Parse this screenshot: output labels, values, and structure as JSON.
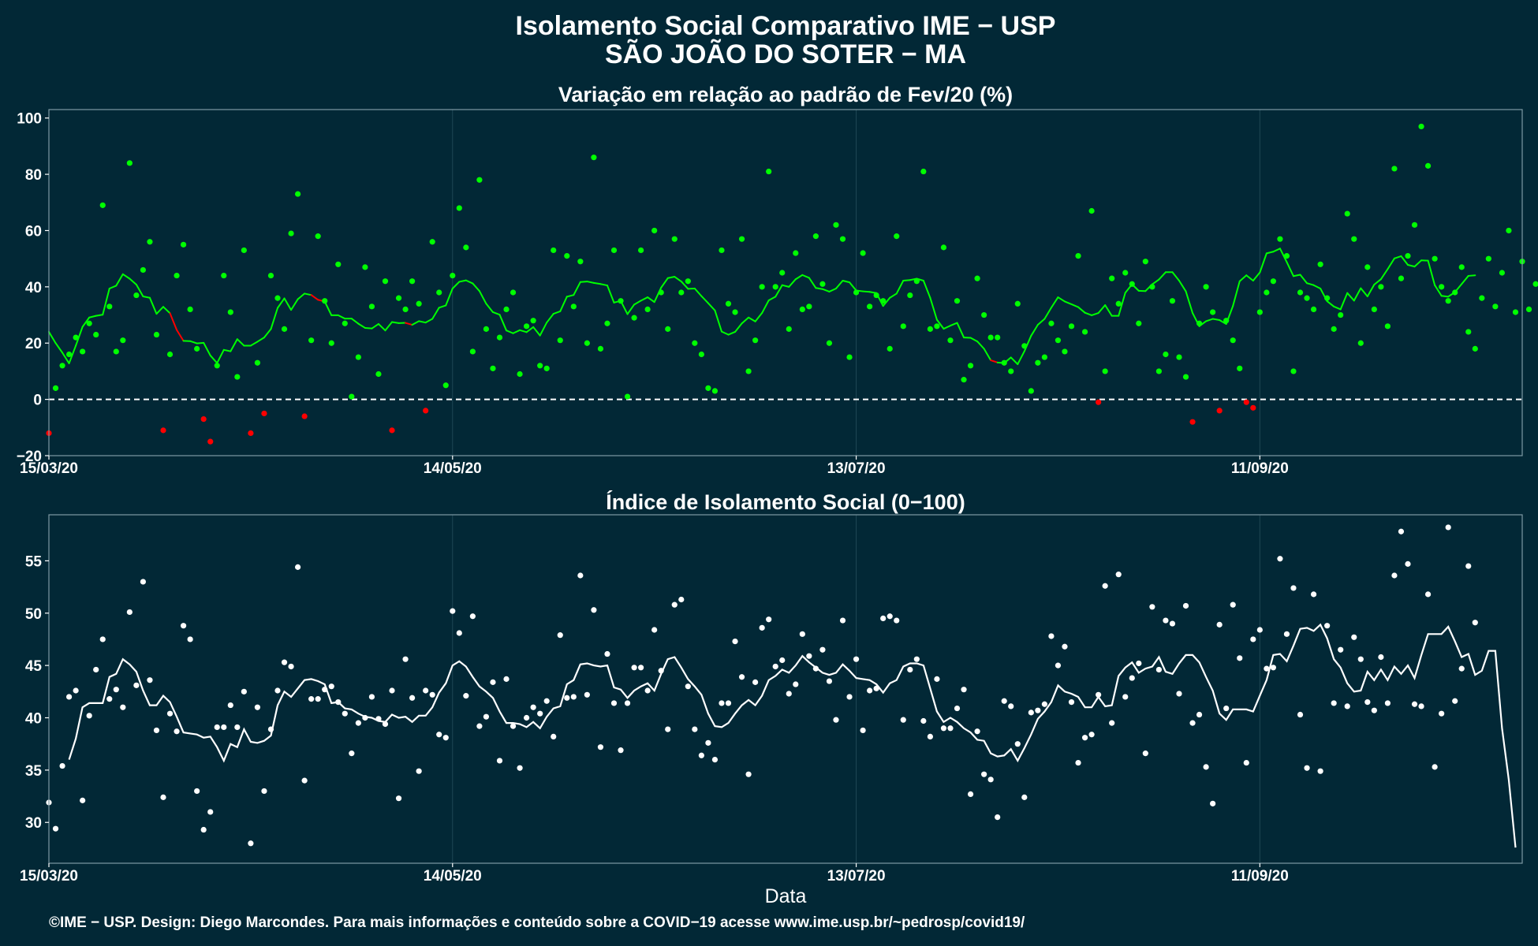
{
  "title_line1": "Isolamento Social Comparativo IME − USP",
  "title_line2": "SÃO JOÃO DO SOTER − MA",
  "x_label": "Data",
  "credit": "©IME − USP. Design: Diego Marcondes. Para mais informações e conteúdo sobre a COVID−19 acesse www.ime.usp.br/~pedrosp/covid19/",
  "colors": {
    "background": "#022836",
    "positive": "#00ff00",
    "negative": "#ff0000",
    "index": "#ffffff",
    "grid": "#1f4754",
    "frame": "#7f9aa3"
  },
  "chart_data": [
    {
      "type": "scatter",
      "title": "Variação em relação ao padrão de Fev/20 (%)",
      "xlabel": "Data",
      "ylabel": "",
      "x_start": "15/03/20",
      "x_ticks": [
        "15/03/20",
        "14/05/20",
        "13/07/20",
        "11/09/20"
      ],
      "x_tick_days": [
        0,
        60,
        120,
        180
      ],
      "xlim_days": [
        0,
        219
      ],
      "y_ticks": [
        "−20",
        "0",
        "20",
        "40",
        "60",
        "80",
        "100"
      ],
      "y_tick_values": [
        -20,
        0,
        20,
        40,
        60,
        80,
        100
      ],
      "ylim": [
        -20,
        103
      ],
      "reference_line": 0,
      "points": [
        -12,
        4,
        12,
        16,
        22,
        17,
        27,
        23,
        69,
        33,
        17,
        21,
        84,
        37,
        46,
        56,
        23,
        -11,
        16,
        44,
        55,
        32,
        18,
        -7,
        -15,
        12,
        44,
        31,
        8,
        53,
        -12,
        13,
        -5,
        44,
        36,
        25,
        59,
        73,
        -6,
        21,
        58,
        35,
        20,
        48,
        27,
        1,
        15,
        47,
        33,
        9,
        42,
        -11,
        36,
        32,
        42,
        34,
        -4,
        56,
        38,
        5,
        44,
        68,
        54,
        17,
        78,
        25,
        11,
        22,
        32,
        38,
        9,
        26,
        28,
        12,
        11,
        53,
        21,
        51,
        33,
        49,
        20,
        86,
        18,
        27,
        53,
        35,
        1,
        29,
        53,
        32,
        60,
        38,
        25,
        57,
        38,
        42,
        20,
        16,
        4,
        3,
        53,
        34,
        31,
        57,
        10,
        21,
        40,
        81,
        40,
        45,
        25,
        52,
        32,
        33,
        58,
        41,
        20,
        62,
        57,
        15,
        38,
        52,
        33,
        37,
        35,
        18,
        58,
        26,
        37,
        42,
        81,
        25,
        26,
        54,
        21,
        35,
        7,
        12,
        43,
        30,
        22,
        22,
        13,
        10,
        34,
        19,
        3,
        13,
        15,
        27,
        21,
        17,
        26,
        51,
        24,
        67,
        -1,
        10,
        43,
        34,
        45,
        41,
        27,
        49,
        40,
        10,
        16,
        35,
        15,
        8,
        -8,
        27,
        40,
        31,
        -4,
        28,
        21,
        11,
        -1,
        -3,
        31,
        38,
        42,
        57,
        51,
        10,
        38,
        36,
        32,
        48,
        36,
        25,
        30,
        66,
        57,
        20,
        47,
        32,
        40,
        26,
        82,
        43,
        51,
        62,
        97,
        83,
        50,
        40,
        35,
        38,
        47,
        24,
        18,
        36,
        50,
        33,
        45,
        60,
        31,
        49,
        32,
        41
      ],
      "smoothed": [
        24.0,
        20.0,
        16.6,
        12.8,
        19.1,
        25.8,
        29.1,
        29.7,
        30.1,
        39.4,
        40.4,
        44.5,
        42.9,
        40.8,
        36.6,
        36.1,
        30.4,
        32.9,
        30.6,
        24.7,
        20.8,
        20.7,
        19.9,
        20.1,
        15.6,
        12.9,
        17.6,
        17.1,
        21.4,
        19.1,
        19.1,
        20.5,
        22.0,
        25.0,
        32.5,
        35.9,
        31.8,
        35.6,
        37.6,
        37.1,
        35.4,
        34.8,
        29.9,
        29.9,
        28.7,
        28.7,
        26.9,
        25.4,
        25.2,
        26.8,
        24.5,
        27.5,
        27.1,
        27.2,
        26.5,
        27.8,
        27.3,
        28.6,
        32.6,
        33.4,
        39.4,
        41.8,
        42.3,
        41.2,
        38.5,
        34.0,
        31.0,
        30.1,
        24.5,
        23.5,
        24.6,
        23.9,
        25.7,
        22.7,
        27.3,
        30.4,
        31.3,
        36.5,
        37.1,
        41.7,
        41.9,
        41.4,
        41.0,
        40.5,
        34.4,
        35.0,
        30.3,
        33.7,
        35.1,
        36.3,
        34.6,
        39.7,
        43.1,
        43.6,
        41.9,
        39.3,
        39.4,
        36.7,
        34.2,
        31.6,
        24.1,
        23.0,
        24.0,
        27.0,
        29.1,
        27.7,
        30.7,
        35.2,
        36.5,
        40.6,
        40.0,
        42.7,
        44.2,
        43.2,
        39.6,
        39.2,
        38.3,
        39.4,
        42.2,
        41.6,
        38.7,
        38.4,
        38.2,
        37.8,
        33.2,
        36.1,
        37.6,
        42.2,
        42.4,
        42.9,
        42.2,
        36.1,
        28.3,
        25.1,
        26.2,
        27.2,
        22.0,
        21.9,
        20.6,
        18.0,
        13.9,
        13.1,
        12.9,
        14.9,
        12.5,
        17.1,
        22.6,
        26.5,
        28.6,
        32.6,
        36.3,
        34.8,
        33.8,
        32.8,
        30.8,
        29.9,
        30.7,
        33.5,
        29.7,
        29.7,
        37.9,
        40.9,
        38.6,
        38.5,
        40.9,
        42.6,
        45.2,
        45.2,
        42.2,
        38.4,
        30.7,
        26.0,
        27.8,
        28.6,
        28.2,
        26.8,
        33.2,
        42.0,
        44.1,
        42.2,
        45.1,
        51.9,
        52.5,
        53.6,
        48.8,
        43.8,
        44.3,
        41.3,
        40.6,
        39.4,
        34.9,
        33.0,
        32.0,
        37.8,
        35.1,
        39.5,
        36.6,
        40.8,
        42.7,
        46.3,
        50.1,
        50.9,
        47.8,
        47.2,
        49.4,
        49.3,
        40.6,
        36.8,
        36.5,
        38.1,
        41.0,
        43.9,
        44.1
      ]
    },
    {
      "type": "scatter",
      "title": "Índice de Isolamento Social (0−100)",
      "xlabel": "Data",
      "ylabel": "",
      "x_start": "15/03/20",
      "x_ticks": [
        "15/03/20",
        "14/05/20",
        "13/07/20",
        "11/09/20"
      ],
      "x_tick_days": [
        0,
        60,
        120,
        180
      ],
      "xlim_days": [
        0,
        219
      ],
      "y_ticks": [
        "30",
        "35",
        "40",
        "45",
        "50",
        "55"
      ],
      "y_tick_values": [
        30,
        35,
        40,
        45,
        50,
        55
      ],
      "ylim": [
        26.1,
        59.4
      ],
      "points": [
        31.9,
        29.4,
        35.4,
        42.0,
        42.6,
        32.1,
        40.2,
        44.6,
        47.5,
        41.8,
        42.7,
        41.0,
        50.1,
        43.1,
        53.0,
        43.6,
        38.8,
        32.4,
        40.4,
        38.7,
        48.8,
        47.5,
        33.0,
        29.3,
        31.0,
        39.1,
        39.1,
        41.2,
        39.1,
        42.5,
        28.0,
        41.0,
        33.0,
        38.9,
        42.6,
        45.3,
        44.9,
        54.4,
        34.0,
        41.8,
        41.8,
        42.7,
        43.0,
        41.5,
        40.4,
        36.6,
        39.5,
        40.0,
        42.0,
        39.9,
        39.4,
        42.6,
        32.3,
        45.6,
        41.9,
        34.9,
        42.6,
        42.2,
        38.4,
        38.1,
        50.2,
        48.1,
        42.1,
        49.7,
        39.2,
        40.1,
        43.4,
        35.9,
        43.7,
        39.2,
        35.2,
        40.0,
        41.0,
        40.4,
        41.6,
        38.2,
        47.9,
        41.9,
        42.0,
        53.6,
        42.2,
        50.3,
        37.2,
        46.1,
        41.4,
        36.9,
        41.4,
        44.8,
        44.8,
        42.6,
        48.4,
        44.5,
        38.9,
        50.8,
        51.3,
        43.0,
        38.9,
        36.4,
        37.6,
        36.0,
        41.4,
        41.4,
        47.3,
        43.9,
        34.6,
        43.4,
        48.6,
        49.4,
        44.9,
        45.5,
        42.3,
        43.2,
        48.0,
        45.9,
        44.7,
        46.5,
        43.5,
        39.8,
        49.3,
        42.0,
        45.6,
        38.8,
        42.6,
        42.8,
        49.5,
        49.7,
        49.3,
        39.8,
        44.6,
        45.6,
        39.7,
        38.2,
        43.7,
        39.0,
        39.0,
        40.9,
        42.7,
        32.7,
        38.7,
        34.6,
        34.1,
        30.5,
        41.6,
        41.1,
        37.5,
        32.4,
        40.5,
        40.7,
        41.3,
        47.8,
        45.0,
        46.8,
        41.5,
        35.7,
        38.1,
        38.4,
        42.2,
        52.6,
        39.5,
        53.7,
        42.0,
        43.8,
        45.2,
        36.6,
        50.6,
        44.6,
        49.3,
        49.0,
        42.3,
        50.7,
        39.5,
        40.3,
        35.3,
        31.8,
        48.9,
        40.9,
        50.8,
        45.7,
        35.7,
        47.5,
        48.4,
        44.7,
        44.8,
        55.2,
        48.0,
        52.4,
        40.3,
        35.2,
        51.8,
        34.9,
        48.8,
        41.4,
        46.5,
        41.1,
        47.7,
        45.6,
        41.5,
        40.7,
        45.8,
        41.4,
        53.6,
        57.8,
        54.7,
        41.3,
        41.1,
        51.8,
        35.3,
        40.4,
        58.2,
        41.6,
        44.7,
        54.5,
        49.1
      ],
      "smoothed": [
        null,
        null,
        null,
        36.0,
        38.0,
        41.0,
        41.4,
        41.4,
        41.4,
        43.9,
        44.2,
        45.6,
        45.1,
        44.4,
        42.6,
        41.2,
        41.2,
        42.1,
        41.5,
        40.1,
        38.6,
        38.5,
        38.4,
        38.1,
        38.2,
        37.2,
        35.9,
        37.5,
        37.2,
        38.9,
        37.7,
        37.6,
        37.8,
        38.3,
        41.2,
        42.5,
        42.0,
        42.8,
        43.6,
        43.7,
        43.5,
        43.2,
        41.4,
        41.5,
        40.9,
        40.8,
        40.4,
        40.1,
        40.0,
        39.7,
        39.6,
        40.3,
        40.0,
        40.1,
        39.6,
        40.2,
        40.2,
        41.0,
        42.4,
        43.3,
        45.0,
        45.4,
        44.9,
        43.9,
        43.0,
        42.5,
        41.9,
        40.6,
        39.5,
        39.5,
        39.4,
        39.1,
        39.6,
        39.0,
        40.1,
        40.9,
        41.1,
        43.2,
        43.6,
        45.1,
        45.2,
        45.0,
        44.9,
        45.0,
        42.9,
        42.7,
        41.9,
        42.6,
        43.0,
        43.3,
        42.6,
        44.2,
        45.6,
        45.8,
        44.8,
        43.7,
        43.0,
        42.2,
        40.4,
        39.2,
        39.1,
        39.5,
        40.4,
        41.2,
        41.7,
        41.2,
        42.1,
        43.6,
        44.0,
        44.6,
        44.3,
        45.0,
        45.9,
        45.3,
        44.8,
        44.3,
        44.1,
        44.3,
        45.1,
        44.5,
        43.8,
        43.7,
        43.6,
        43.2,
        42.4,
        43.3,
        43.6,
        44.9,
        45.2,
        45.2,
        45.0,
        42.8,
        40.6,
        39.6,
        40.0,
        39.6,
        39.0,
        38.6,
        37.9,
        37.8,
        36.6,
        36.3,
        36.4,
        37.0,
        35.9,
        37.1,
        38.4,
        39.9,
        40.6,
        41.5,
        43.1,
        42.5,
        42.3,
        42.0,
        41.0,
        41.0,
        42.0,
        41.1,
        41.2,
        44.0,
        44.8,
        45.3,
        44.3,
        44.7,
        44.9,
        45.8,
        44.4,
        44.2,
        45.2,
        46.0,
        46.0,
        45.3,
        43.9,
        42.6,
        40.4,
        39.8,
        40.8,
        40.8,
        40.8,
        40.6,
        42.1,
        43.6,
        46.0,
        46.1,
        45.4,
        46.9,
        48.5,
        48.6,
        48.3,
        48.9,
        47.6,
        45.6,
        44.8,
        43.3,
        42.5,
        42.6,
        44.4,
        43.6,
        44.6,
        43.6,
        44.9,
        44.2,
        45.0,
        43.8,
        46.0,
        48.0,
        48.0,
        48.0,
        48.7,
        47.3,
        45.8,
        46.1,
        44.1,
        44.5,
        46.4,
        46.4,
        39.0,
        34.1,
        27.6
      ]
    }
  ]
}
